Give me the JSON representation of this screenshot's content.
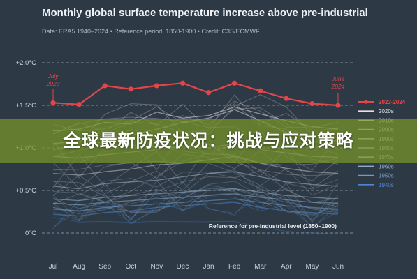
{
  "header": {
    "title": "Monthly global surface temperature increase above pre-industrial",
    "subtitle": "Data: ERA5 1940–2024 • Reference period: 1850-1900 • Credit: C3S/ECMWF"
  },
  "overlay": {
    "text": "全球最新防疫状况：挑战与应对策略"
  },
  "annotations": {
    "start_line1": "July",
    "start_line2": "2023",
    "end_line1": "June",
    "end_line2": "2024",
    "reference": "Reference for pre-industrial level (1850–1900)"
  },
  "chart_data": {
    "type": "line",
    "title": "Monthly global surface temperature increase above pre-industrial",
    "categories": [
      "Jul",
      "Aug",
      "Sep",
      "Oct",
      "Nov",
      "Dec",
      "Jan",
      "Feb",
      "Mar",
      "Apr",
      "May",
      "Jun"
    ],
    "ylim": [
      -0.4,
      2.3
    ],
    "yticks": [
      0,
      0.5,
      1.0,
      1.5,
      2.0
    ],
    "ytick_labels": [
      "0°C",
      "+0.5°C",
      "+1.0°C",
      "+1.5°C",
      "+2.0°C"
    ],
    "grid": true,
    "legend_position": "right",
    "reference_value": 0,
    "series": [
      {
        "name": "2023-2024",
        "values": [
          1.53,
          1.51,
          1.73,
          1.69,
          1.73,
          1.76,
          1.65,
          1.76,
          1.67,
          1.58,
          1.52,
          1.5
        ],
        "color": "#e0474c",
        "highlight": true
      },
      {
        "name": "2020s",
        "values": [
          1.2,
          1.22,
          1.3,
          1.28,
          1.42,
          1.35,
          1.38,
          1.48,
          1.4,
          1.32,
          1.25,
          1.22
        ],
        "color": "#e8dfe3"
      },
      {
        "name": "2010s",
        "values": [
          1.05,
          1.08,
          1.1,
          1.15,
          1.22,
          1.3,
          1.35,
          1.45,
          1.32,
          1.18,
          1.1,
          1.08
        ],
        "color": "#d9d6dc"
      },
      {
        "name": "2000s",
        "values": [
          0.9,
          0.88,
          0.92,
          0.95,
          0.98,
          1.02,
          1.0,
          1.05,
          0.98,
          0.94,
          0.9,
          0.89
        ],
        "color": "#c9c9d2"
      },
      {
        "name": "1990s",
        "values": [
          0.7,
          0.68,
          0.72,
          0.75,
          0.8,
          0.82,
          0.86,
          0.9,
          0.82,
          0.76,
          0.72,
          0.7
        ],
        "color": "#bfc3cc"
      },
      {
        "name": "1980s",
        "values": [
          0.55,
          0.52,
          0.58,
          0.6,
          0.62,
          0.66,
          0.7,
          0.72,
          0.66,
          0.6,
          0.57,
          0.55
        ],
        "color": "#aab7c4"
      },
      {
        "name": "1970s",
        "values": [
          0.4,
          0.38,
          0.42,
          0.44,
          0.46,
          0.48,
          0.5,
          0.52,
          0.48,
          0.44,
          0.42,
          0.4
        ],
        "color": "#9fb4c8"
      },
      {
        "name": "1960s",
        "values": [
          0.35,
          0.33,
          0.36,
          0.38,
          0.4,
          0.42,
          0.44,
          0.46,
          0.42,
          0.39,
          0.36,
          0.35
        ],
        "color": "#8fadc8"
      },
      {
        "name": "1950s",
        "values": [
          0.28,
          0.26,
          0.3,
          0.32,
          0.34,
          0.36,
          0.38,
          0.4,
          0.36,
          0.32,
          0.3,
          0.28
        ],
        "color": "#6f9ccc"
      },
      {
        "name": "1940s",
        "values": [
          0.22,
          0.2,
          0.24,
          0.26,
          0.3,
          0.32,
          0.34,
          0.36,
          0.3,
          0.26,
          0.24,
          0.22
        ],
        "color": "#4d88cf"
      }
    ]
  }
}
